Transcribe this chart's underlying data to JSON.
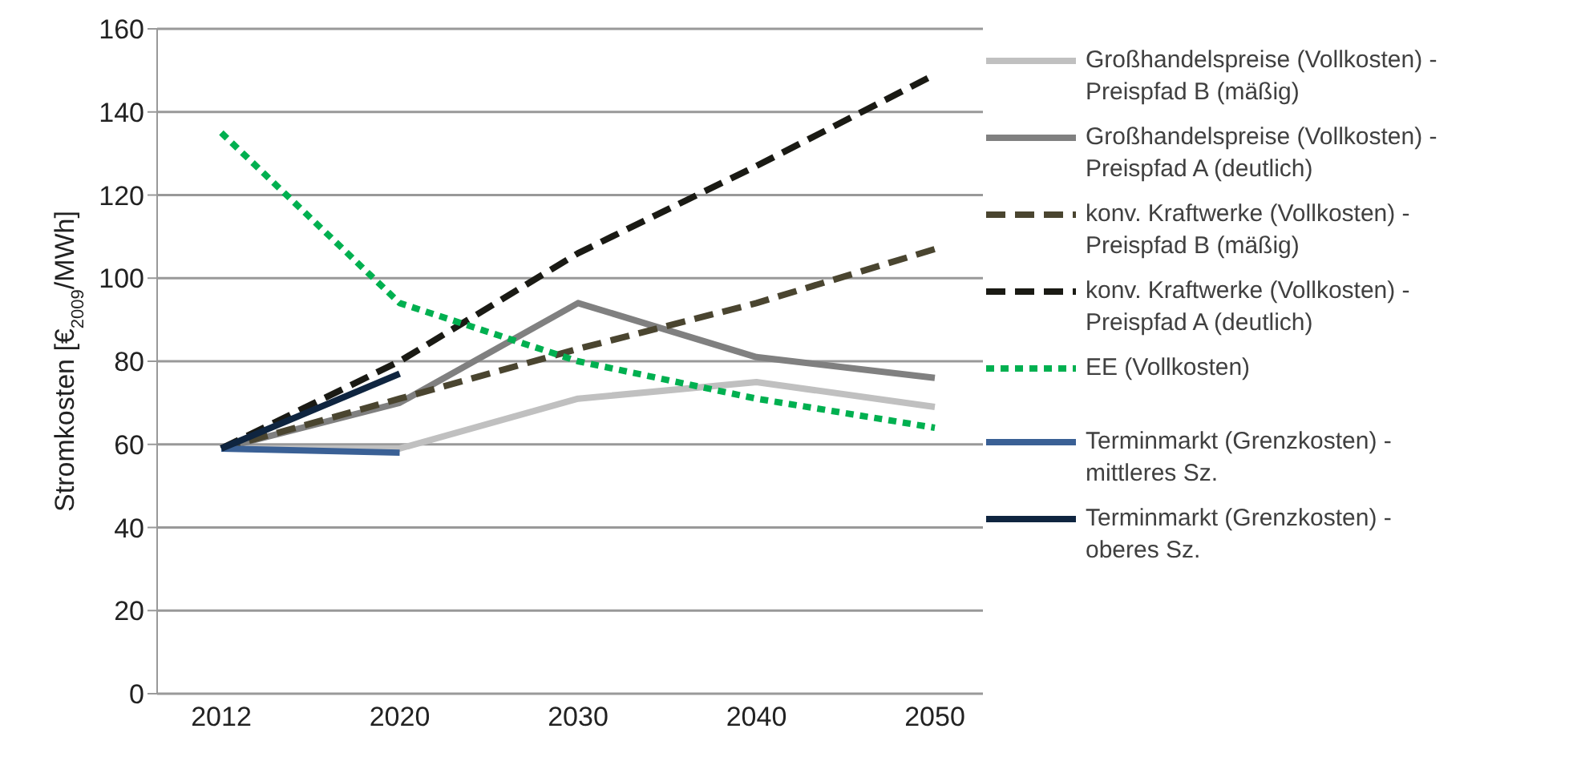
{
  "chart_data": {
    "type": "line",
    "ylabel": "Stromkosten [€$_{2009}$/MWh]",
    "categories": [
      "2012",
      "2020",
      "2030",
      "2040",
      "2050"
    ],
    "ylim": [
      0,
      160
    ],
    "yticks": [
      0,
      20,
      40,
      60,
      80,
      100,
      120,
      140,
      160
    ],
    "grid": "y",
    "legend": "right",
    "marker": "none",
    "series": [
      {
        "name": "Großhandelspreise (Vollkosten) - Preispfad B (mäßig)",
        "color": "#c0c0c0",
        "line_style": "solid",
        "values": [
          59,
          59,
          71,
          75,
          69
        ]
      },
      {
        "name": "Großhandelspreise (Vollkosten) - Preispfad A (deutlich)",
        "color": "#808080",
        "line_style": "solid",
        "values": [
          59,
          70,
          94,
          81,
          76
        ]
      },
      {
        "name": "konv. Kraftwerke (Vollkosten) - Preispfad B (mäßig)",
        "color": "#4a4530",
        "line_style": "dashed",
        "values": [
          59,
          71,
          83,
          94,
          107
        ]
      },
      {
        "name": "konv. Kraftwerke (Vollkosten) - Preispfad A (deutlich)",
        "color": "#1a1a14",
        "line_style": "dashed",
        "values": [
          59,
          80,
          106,
          127,
          149
        ]
      },
      {
        "name": "EE (Vollkosten)",
        "color": "#00b050",
        "line_style": "dotted",
        "values": [
          135,
          94,
          80,
          71,
          64
        ]
      },
      {
        "name": "Terminmarkt (Grenzkosten) - mittleres Sz.",
        "color": "#3a6095",
        "line_style": "solid",
        "values": [
          59,
          58,
          null,
          null,
          null
        ]
      },
      {
        "name": "Terminmarkt (Grenzkosten) - oberes Sz.",
        "color": "#0f2540",
        "line_style": "solid",
        "values": [
          59,
          77,
          null,
          null,
          null
        ]
      }
    ]
  }
}
